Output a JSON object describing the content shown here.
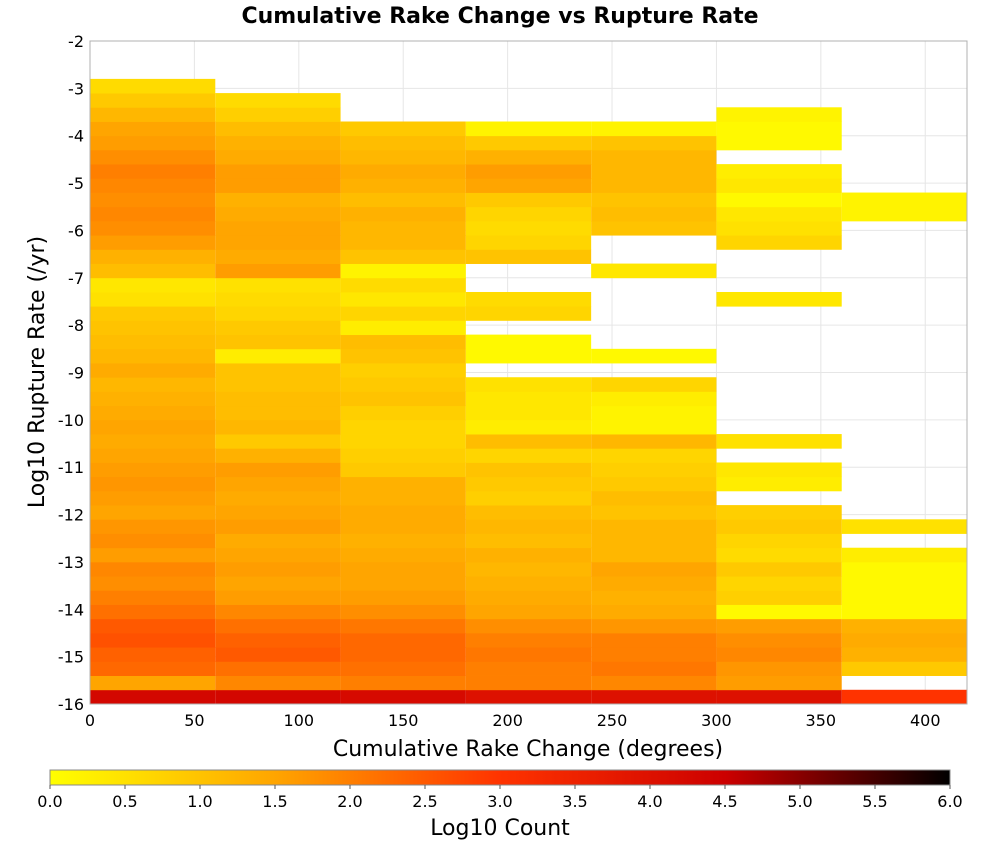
{
  "chart_data": {
    "type": "heatmap",
    "title": "Cumulative Rake Change vs Rupture Rate",
    "xlabel": "Cumulative Rake Change (degrees)",
    "ylabel": "Log10 Rupture Rate (/yr)",
    "xlim": [
      0,
      420
    ],
    "ylim": [
      -16,
      -2
    ],
    "x_ticks": [
      "0",
      "50",
      "100",
      "150",
      "200",
      "250",
      "300",
      "350",
      "400"
    ],
    "y_ticks": [
      "-2",
      "-3",
      "-4",
      "-5",
      "-6",
      "-7",
      "-8",
      "-9",
      "-10",
      "-11",
      "-12",
      "-13",
      "-14",
      "-15",
      "-16"
    ],
    "grid": true,
    "x_bin_width": 60,
    "y_bin_height": 0.3,
    "colorbar": {
      "label": "Log10 Count",
      "range": [
        0,
        6
      ],
      "ticks": [
        "0.0",
        "0.5",
        "1.0",
        "1.5",
        "2.0",
        "2.5",
        "3.0",
        "3.5",
        "4.0",
        "4.5",
        "5.0",
        "5.5",
        "6.0"
      ],
      "placement": "bottom",
      "gradient": [
        "#ffff00",
        "#ffa500",
        "#ff3300",
        "#cc0000",
        "#000000"
      ]
    },
    "columns": [
      {
        "x_start": 0,
        "bins": [
          {
            "y": -16.0,
            "v": 4.3
          },
          {
            "y": -15.7,
            "v": 1.5
          },
          {
            "y": -15.4,
            "v": 2.3
          },
          {
            "y": -15.1,
            "v": 2.4
          },
          {
            "y": -14.8,
            "v": 2.6
          },
          {
            "y": -14.5,
            "v": 2.5
          },
          {
            "y": -14.2,
            "v": 2.2
          },
          {
            "y": -13.9,
            "v": 2.0
          },
          {
            "y": -13.6,
            "v": 1.8
          },
          {
            "y": -13.3,
            "v": 1.9
          },
          {
            "y": -13.0,
            "v": 1.6
          },
          {
            "y": -12.7,
            "v": 1.8
          },
          {
            "y": -12.4,
            "v": 1.7
          },
          {
            "y": -12.1,
            "v": 1.5
          },
          {
            "y": -11.8,
            "v": 1.6
          },
          {
            "y": -11.5,
            "v": 1.7
          },
          {
            "y": -11.2,
            "v": 1.6
          },
          {
            "y": -10.9,
            "v": 1.5
          },
          {
            "y": -10.6,
            "v": 1.4
          },
          {
            "y": -10.3,
            "v": 1.5
          },
          {
            "y": -10.0,
            "v": 1.4
          },
          {
            "y": -9.7,
            "v": 1.3
          },
          {
            "y": -9.4,
            "v": 1.2
          },
          {
            "y": -9.1,
            "v": 1.4
          },
          {
            "y": -8.8,
            "v": 1.2
          },
          {
            "y": -8.5,
            "v": 1.1
          },
          {
            "y": -8.2,
            "v": 1.0
          },
          {
            "y": -7.9,
            "v": 0.9
          },
          {
            "y": -7.6,
            "v": 0.5
          },
          {
            "y": -7.3,
            "v": 0.4
          },
          {
            "y": -7.0,
            "v": 1.1
          },
          {
            "y": -6.7,
            "v": 1.3
          },
          {
            "y": -6.4,
            "v": 1.6
          },
          {
            "y": -6.1,
            "v": 1.8
          },
          {
            "y": -5.8,
            "v": 1.9
          },
          {
            "y": -5.5,
            "v": 1.8
          },
          {
            "y": -5.2,
            "v": 1.9
          },
          {
            "y": -4.9,
            "v": 2.0
          },
          {
            "y": -4.6,
            "v": 1.8
          },
          {
            "y": -4.3,
            "v": 1.6
          },
          {
            "y": -4.0,
            "v": 1.5
          },
          {
            "y": -3.7,
            "v": 1.2
          },
          {
            "y": -3.4,
            "v": 0.9
          },
          {
            "y": -3.1,
            "v": 0.6
          }
        ]
      },
      {
        "x_start": 60,
        "bins": [
          {
            "y": -16.0,
            "v": 4.3
          },
          {
            "y": -15.7,
            "v": 1.9
          },
          {
            "y": -15.4,
            "v": 2.2
          },
          {
            "y": -15.1,
            "v": 2.5
          },
          {
            "y": -14.8,
            "v": 2.4
          },
          {
            "y": -14.5,
            "v": 2.2
          },
          {
            "y": -14.2,
            "v": 1.9
          },
          {
            "y": -13.9,
            "v": 1.6
          },
          {
            "y": -13.6,
            "v": 1.5
          },
          {
            "y": -13.3,
            "v": 1.6
          },
          {
            "y": -13.0,
            "v": 1.5
          },
          {
            "y": -12.7,
            "v": 1.4
          },
          {
            "y": -12.4,
            "v": 1.6
          },
          {
            "y": -12.1,
            "v": 1.5
          },
          {
            "y": -11.8,
            "v": 1.4
          },
          {
            "y": -11.5,
            "v": 1.5
          },
          {
            "y": -11.2,
            "v": 1.6
          },
          {
            "y": -10.9,
            "v": 1.3
          },
          {
            "y": -10.6,
            "v": 0.9
          },
          {
            "y": -10.3,
            "v": 1.2
          },
          {
            "y": -10.0,
            "v": 1.1
          },
          {
            "y": -9.7,
            "v": 1.1
          },
          {
            "y": -9.4,
            "v": 1.0
          },
          {
            "y": -9.1,
            "v": 1.0
          },
          {
            "y": -8.8,
            "v": 0.3
          },
          {
            "y": -8.5,
            "v": 1.0
          },
          {
            "y": -8.2,
            "v": 0.9
          },
          {
            "y": -7.9,
            "v": 0.7
          },
          {
            "y": -7.6,
            "v": 0.6
          },
          {
            "y": -7.3,
            "v": 0.5
          },
          {
            "y": -7.0,
            "v": 1.6
          },
          {
            "y": -6.7,
            "v": 1.4
          },
          {
            "y": -6.4,
            "v": 1.5
          },
          {
            "y": -6.1,
            "v": 1.5
          },
          {
            "y": -5.8,
            "v": 1.4
          },
          {
            "y": -5.5,
            "v": 1.3
          },
          {
            "y": -5.2,
            "v": 1.6
          },
          {
            "y": -4.9,
            "v": 1.6
          },
          {
            "y": -4.6,
            "v": 1.4
          },
          {
            "y": -4.3,
            "v": 1.3
          },
          {
            "y": -4.0,
            "v": 1.1
          },
          {
            "y": -3.7,
            "v": 0.8
          },
          {
            "y": -3.4,
            "v": 0.6
          }
        ]
      },
      {
        "x_start": 120,
        "bins": [
          {
            "y": -16.0,
            "v": 4.2
          },
          {
            "y": -15.7,
            "v": 2.0
          },
          {
            "y": -15.4,
            "v": 2.2
          },
          {
            "y": -15.1,
            "v": 2.3
          },
          {
            "y": -14.8,
            "v": 2.3
          },
          {
            "y": -14.5,
            "v": 2.1
          },
          {
            "y": -14.2,
            "v": 1.8
          },
          {
            "y": -13.9,
            "v": 1.6
          },
          {
            "y": -13.6,
            "v": 1.5
          },
          {
            "y": -13.3,
            "v": 1.5
          },
          {
            "y": -13.0,
            "v": 1.4
          },
          {
            "y": -12.7,
            "v": 1.3
          },
          {
            "y": -12.4,
            "v": 1.4
          },
          {
            "y": -12.1,
            "v": 1.4
          },
          {
            "y": -11.8,
            "v": 1.3
          },
          {
            "y": -11.5,
            "v": 1.3
          },
          {
            "y": -11.2,
            "v": 0.9
          },
          {
            "y": -10.9,
            "v": 0.8
          },
          {
            "y": -10.6,
            "v": 0.7
          },
          {
            "y": -10.3,
            "v": 0.7
          },
          {
            "y": -10.0,
            "v": 0.8
          },
          {
            "y": -9.7,
            "v": 1.0
          },
          {
            "y": -9.4,
            "v": 0.9
          },
          {
            "y": -9.1,
            "v": 0.8
          },
          {
            "y": -8.8,
            "v": 1.0
          },
          {
            "y": -8.5,
            "v": 1.1
          },
          {
            "y": -8.2,
            "v": 0.3
          },
          {
            "y": -7.9,
            "v": 0.7
          },
          {
            "y": -7.6,
            "v": 0.4
          },
          {
            "y": -7.3,
            "v": 0.6
          },
          {
            "y": -7.0,
            "v": 0.2
          },
          {
            "y": -6.7,
            "v": 1.0
          },
          {
            "y": -6.4,
            "v": 1.2
          },
          {
            "y": -6.1,
            "v": 1.2
          },
          {
            "y": -5.8,
            "v": 1.3
          },
          {
            "y": -5.5,
            "v": 1.1
          },
          {
            "y": -5.2,
            "v": 1.3
          },
          {
            "y": -4.9,
            "v": 1.4
          },
          {
            "y": -4.6,
            "v": 1.2
          },
          {
            "y": -4.3,
            "v": 1.1
          },
          {
            "y": -4.0,
            "v": 0.9
          }
        ]
      },
      {
        "x_start": 180,
        "bins": [
          {
            "y": -16.0,
            "v": 4.0
          },
          {
            "y": -15.7,
            "v": 2.0
          },
          {
            "y": -15.4,
            "v": 2.0
          },
          {
            "y": -15.1,
            "v": 2.1
          },
          {
            "y": -14.8,
            "v": 2.0
          },
          {
            "y": -14.5,
            "v": 1.8
          },
          {
            "y": -14.2,
            "v": 1.5
          },
          {
            "y": -13.9,
            "v": 1.4
          },
          {
            "y": -13.6,
            "v": 1.3
          },
          {
            "y": -13.3,
            "v": 1.2
          },
          {
            "y": -13.0,
            "v": 1.3
          },
          {
            "y": -12.7,
            "v": 1.1
          },
          {
            "y": -12.4,
            "v": 1.2
          },
          {
            "y": -12.1,
            "v": 1.1
          },
          {
            "y": -11.8,
            "v": 0.8
          },
          {
            "y": -11.5,
            "v": 0.9
          },
          {
            "y": -11.2,
            "v": 1.0
          },
          {
            "y": -10.9,
            "v": 0.7
          },
          {
            "y": -10.6,
            "v": 1.1
          },
          {
            "y": -10.3,
            "v": 0.3
          },
          {
            "y": -10.0,
            "v": 0.4
          },
          {
            "y": -9.7,
            "v": 0.4
          },
          {
            "y": -9.4,
            "v": 0.5
          },
          {
            "y": -8.8,
            "v": 0.1
          },
          {
            "y": -8.5,
            "v": 0.1
          },
          {
            "y": -7.9,
            "v": 0.7
          },
          {
            "y": -7.6,
            "v": 0.6
          },
          {
            "y": -6.7,
            "v": 1.0
          },
          {
            "y": -6.4,
            "v": 0.7
          },
          {
            "y": -6.1,
            "v": 0.6
          },
          {
            "y": -5.8,
            "v": 0.7
          },
          {
            "y": -5.5,
            "v": 0.9
          },
          {
            "y": -5.2,
            "v": 1.5
          },
          {
            "y": -4.9,
            "v": 1.6
          },
          {
            "y": -4.6,
            "v": 1.3
          },
          {
            "y": -4.3,
            "v": 0.9
          },
          {
            "y": -4.0,
            "v": 0.2
          }
        ]
      },
      {
        "x_start": 240,
        "bins": [
          {
            "y": -16.0,
            "v": 4.0
          },
          {
            "y": -15.7,
            "v": 1.9
          },
          {
            "y": -15.4,
            "v": 2.1
          },
          {
            "y": -15.1,
            "v": 2.0
          },
          {
            "y": -14.8,
            "v": 2.0
          },
          {
            "y": -14.5,
            "v": 1.7
          },
          {
            "y": -14.2,
            "v": 1.4
          },
          {
            "y": -13.9,
            "v": 1.3
          },
          {
            "y": -13.6,
            "v": 1.4
          },
          {
            "y": -13.3,
            "v": 1.5
          },
          {
            "y": -13.0,
            "v": 1.2
          },
          {
            "y": -12.7,
            "v": 1.2
          },
          {
            "y": -12.4,
            "v": 1.2
          },
          {
            "y": -12.1,
            "v": 1.0
          },
          {
            "y": -11.8,
            "v": 1.1
          },
          {
            "y": -11.5,
            "v": 0.9
          },
          {
            "y": -11.2,
            "v": 0.8
          },
          {
            "y": -10.9,
            "v": 0.7
          },
          {
            "y": -10.6,
            "v": 1.2
          },
          {
            "y": -10.3,
            "v": 0.2
          },
          {
            "y": -10.0,
            "v": 0.2
          },
          {
            "y": -9.7,
            "v": 0.3
          },
          {
            "y": -9.4,
            "v": 0.7
          },
          {
            "y": -8.8,
            "v": 0.1
          },
          {
            "y": -7.0,
            "v": 0.4
          },
          {
            "y": -6.1,
            "v": 1.0
          },
          {
            "y": -5.8,
            "v": 1.1
          },
          {
            "y": -5.5,
            "v": 1.0
          },
          {
            "y": -5.2,
            "v": 1.2
          },
          {
            "y": -4.9,
            "v": 1.2
          },
          {
            "y": -4.6,
            "v": 1.2
          },
          {
            "y": -4.3,
            "v": 1.0
          },
          {
            "y": -4.0,
            "v": 0.2
          }
        ]
      },
      {
        "x_start": 300,
        "bins": [
          {
            "y": -16.0,
            "v": 4.0
          },
          {
            "y": -15.7,
            "v": 1.6
          },
          {
            "y": -15.4,
            "v": 1.7
          },
          {
            "y": -15.1,
            "v": 1.9
          },
          {
            "y": -14.8,
            "v": 1.8
          },
          {
            "y": -14.5,
            "v": 1.6
          },
          {
            "y": -14.2,
            "v": 0.1
          },
          {
            "y": -13.9,
            "v": 0.8
          },
          {
            "y": -13.6,
            "v": 0.7
          },
          {
            "y": -13.3,
            "v": 0.9
          },
          {
            "y": -13.0,
            "v": 0.6
          },
          {
            "y": -12.7,
            "v": 0.7
          },
          {
            "y": -12.4,
            "v": 0.9
          },
          {
            "y": -12.1,
            "v": 0.8
          },
          {
            "y": -11.5,
            "v": 0.3
          },
          {
            "y": -11.2,
            "v": 0.4
          },
          {
            "y": -10.6,
            "v": 0.5
          },
          {
            "y": -7.6,
            "v": 0.4
          },
          {
            "y": -6.4,
            "v": 0.7
          },
          {
            "y": -6.1,
            "v": 0.5
          },
          {
            "y": -5.8,
            "v": 0.4
          },
          {
            "y": -5.5,
            "v": 0.1
          },
          {
            "y": -5.2,
            "v": 0.4
          },
          {
            "y": -4.9,
            "v": 0.3
          },
          {
            "y": -4.3,
            "v": 0.1
          },
          {
            "y": -4.0,
            "v": 0.1
          },
          {
            "y": -3.7,
            "v": 0.2
          }
        ]
      },
      {
        "x_start": 360,
        "bins": [
          {
            "y": -16.0,
            "v": 3.0
          },
          {
            "y": -15.4,
            "v": 0.9
          },
          {
            "y": -15.1,
            "v": 1.3
          },
          {
            "y": -14.8,
            "v": 1.4
          },
          {
            "y": -14.5,
            "v": 1.3
          },
          {
            "y": -14.2,
            "v": 0.1
          },
          {
            "y": -13.9,
            "v": 0.1
          },
          {
            "y": -13.6,
            "v": 0.1
          },
          {
            "y": -13.3,
            "v": 0.1
          },
          {
            "y": -13.0,
            "v": 0.3
          },
          {
            "y": -12.4,
            "v": 0.5
          },
          {
            "y": -5.8,
            "v": 0.2
          },
          {
            "y": -5.5,
            "v": 0.2
          }
        ]
      }
    ]
  }
}
